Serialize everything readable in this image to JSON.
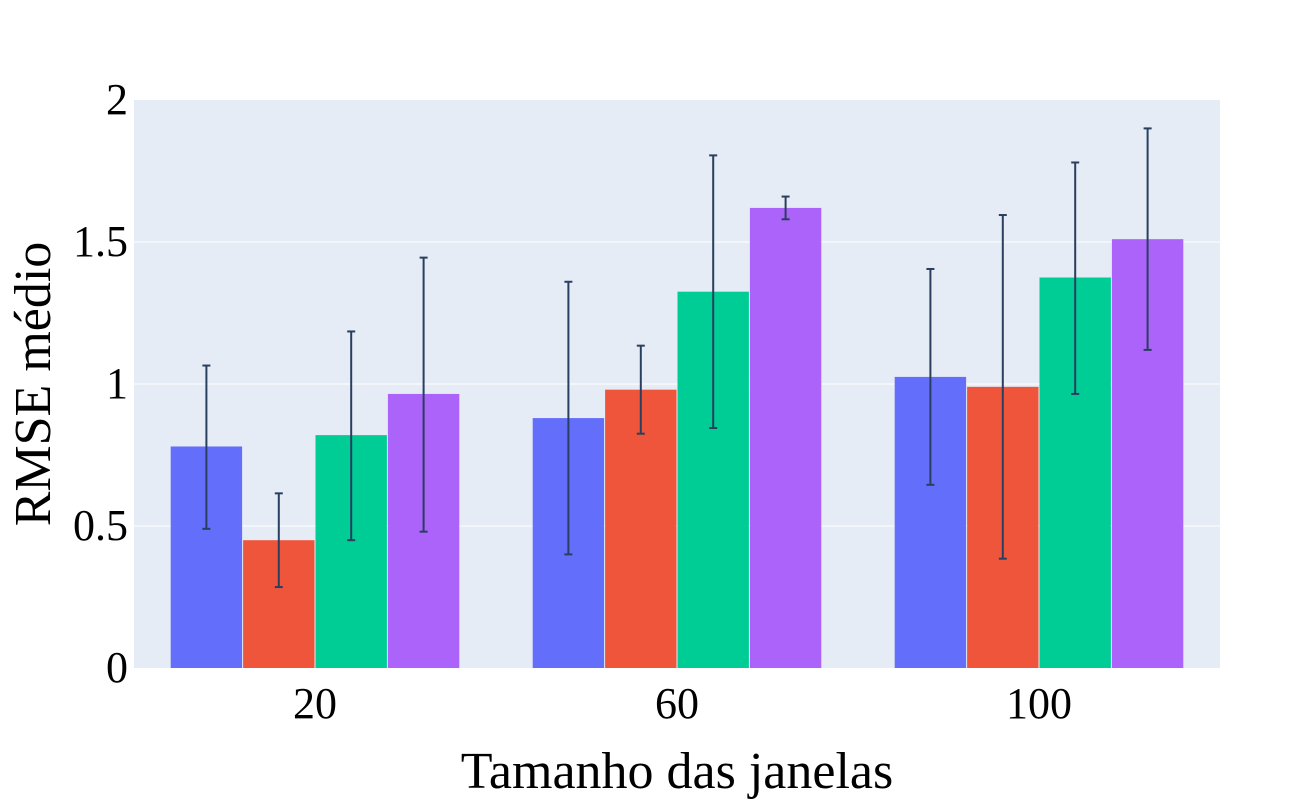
{
  "chart_data": {
    "type": "bar",
    "title": "",
    "xlabel": "Tamanho das janelas",
    "ylabel": "RMSE médio",
    "categories": [
      "20",
      "60",
      "100"
    ],
    "ylim": [
      0,
      2
    ],
    "yticks": [
      0,
      0.5,
      1,
      1.5,
      2
    ],
    "ytick_labels": [
      "0",
      "0.5",
      "1",
      "1.5",
      "2"
    ],
    "grid": true,
    "legend": "none",
    "series": [
      {
        "color": "#636efa",
        "values": [
          0.78,
          0.88,
          1.025
        ],
        "error_low": [
          0.49,
          0.4,
          0.645
        ],
        "error_high": [
          1.065,
          1.36,
          1.405
        ]
      },
      {
        "color": "#ef553b",
        "values": [
          0.45,
          0.98,
          0.99
        ],
        "error_low": [
          0.285,
          0.825,
          0.385
        ],
        "error_high": [
          0.615,
          1.135,
          1.595
        ]
      },
      {
        "color": "#00cc96",
        "values": [
          0.82,
          1.325,
          1.375
        ],
        "error_low": [
          0.45,
          0.845,
          0.965
        ],
        "error_high": [
          1.185,
          1.805,
          1.78
        ]
      },
      {
        "color": "#ab63fa",
        "values": [
          0.965,
          1.62,
          1.51
        ],
        "error_low": [
          0.48,
          1.58,
          1.12
        ],
        "error_high": [
          1.445,
          1.66,
          1.9
        ]
      }
    ],
    "colors": {
      "plot_background": "#e5ecf6",
      "gridline": "#ffffff",
      "error_bar": "#2a3f5f"
    }
  }
}
